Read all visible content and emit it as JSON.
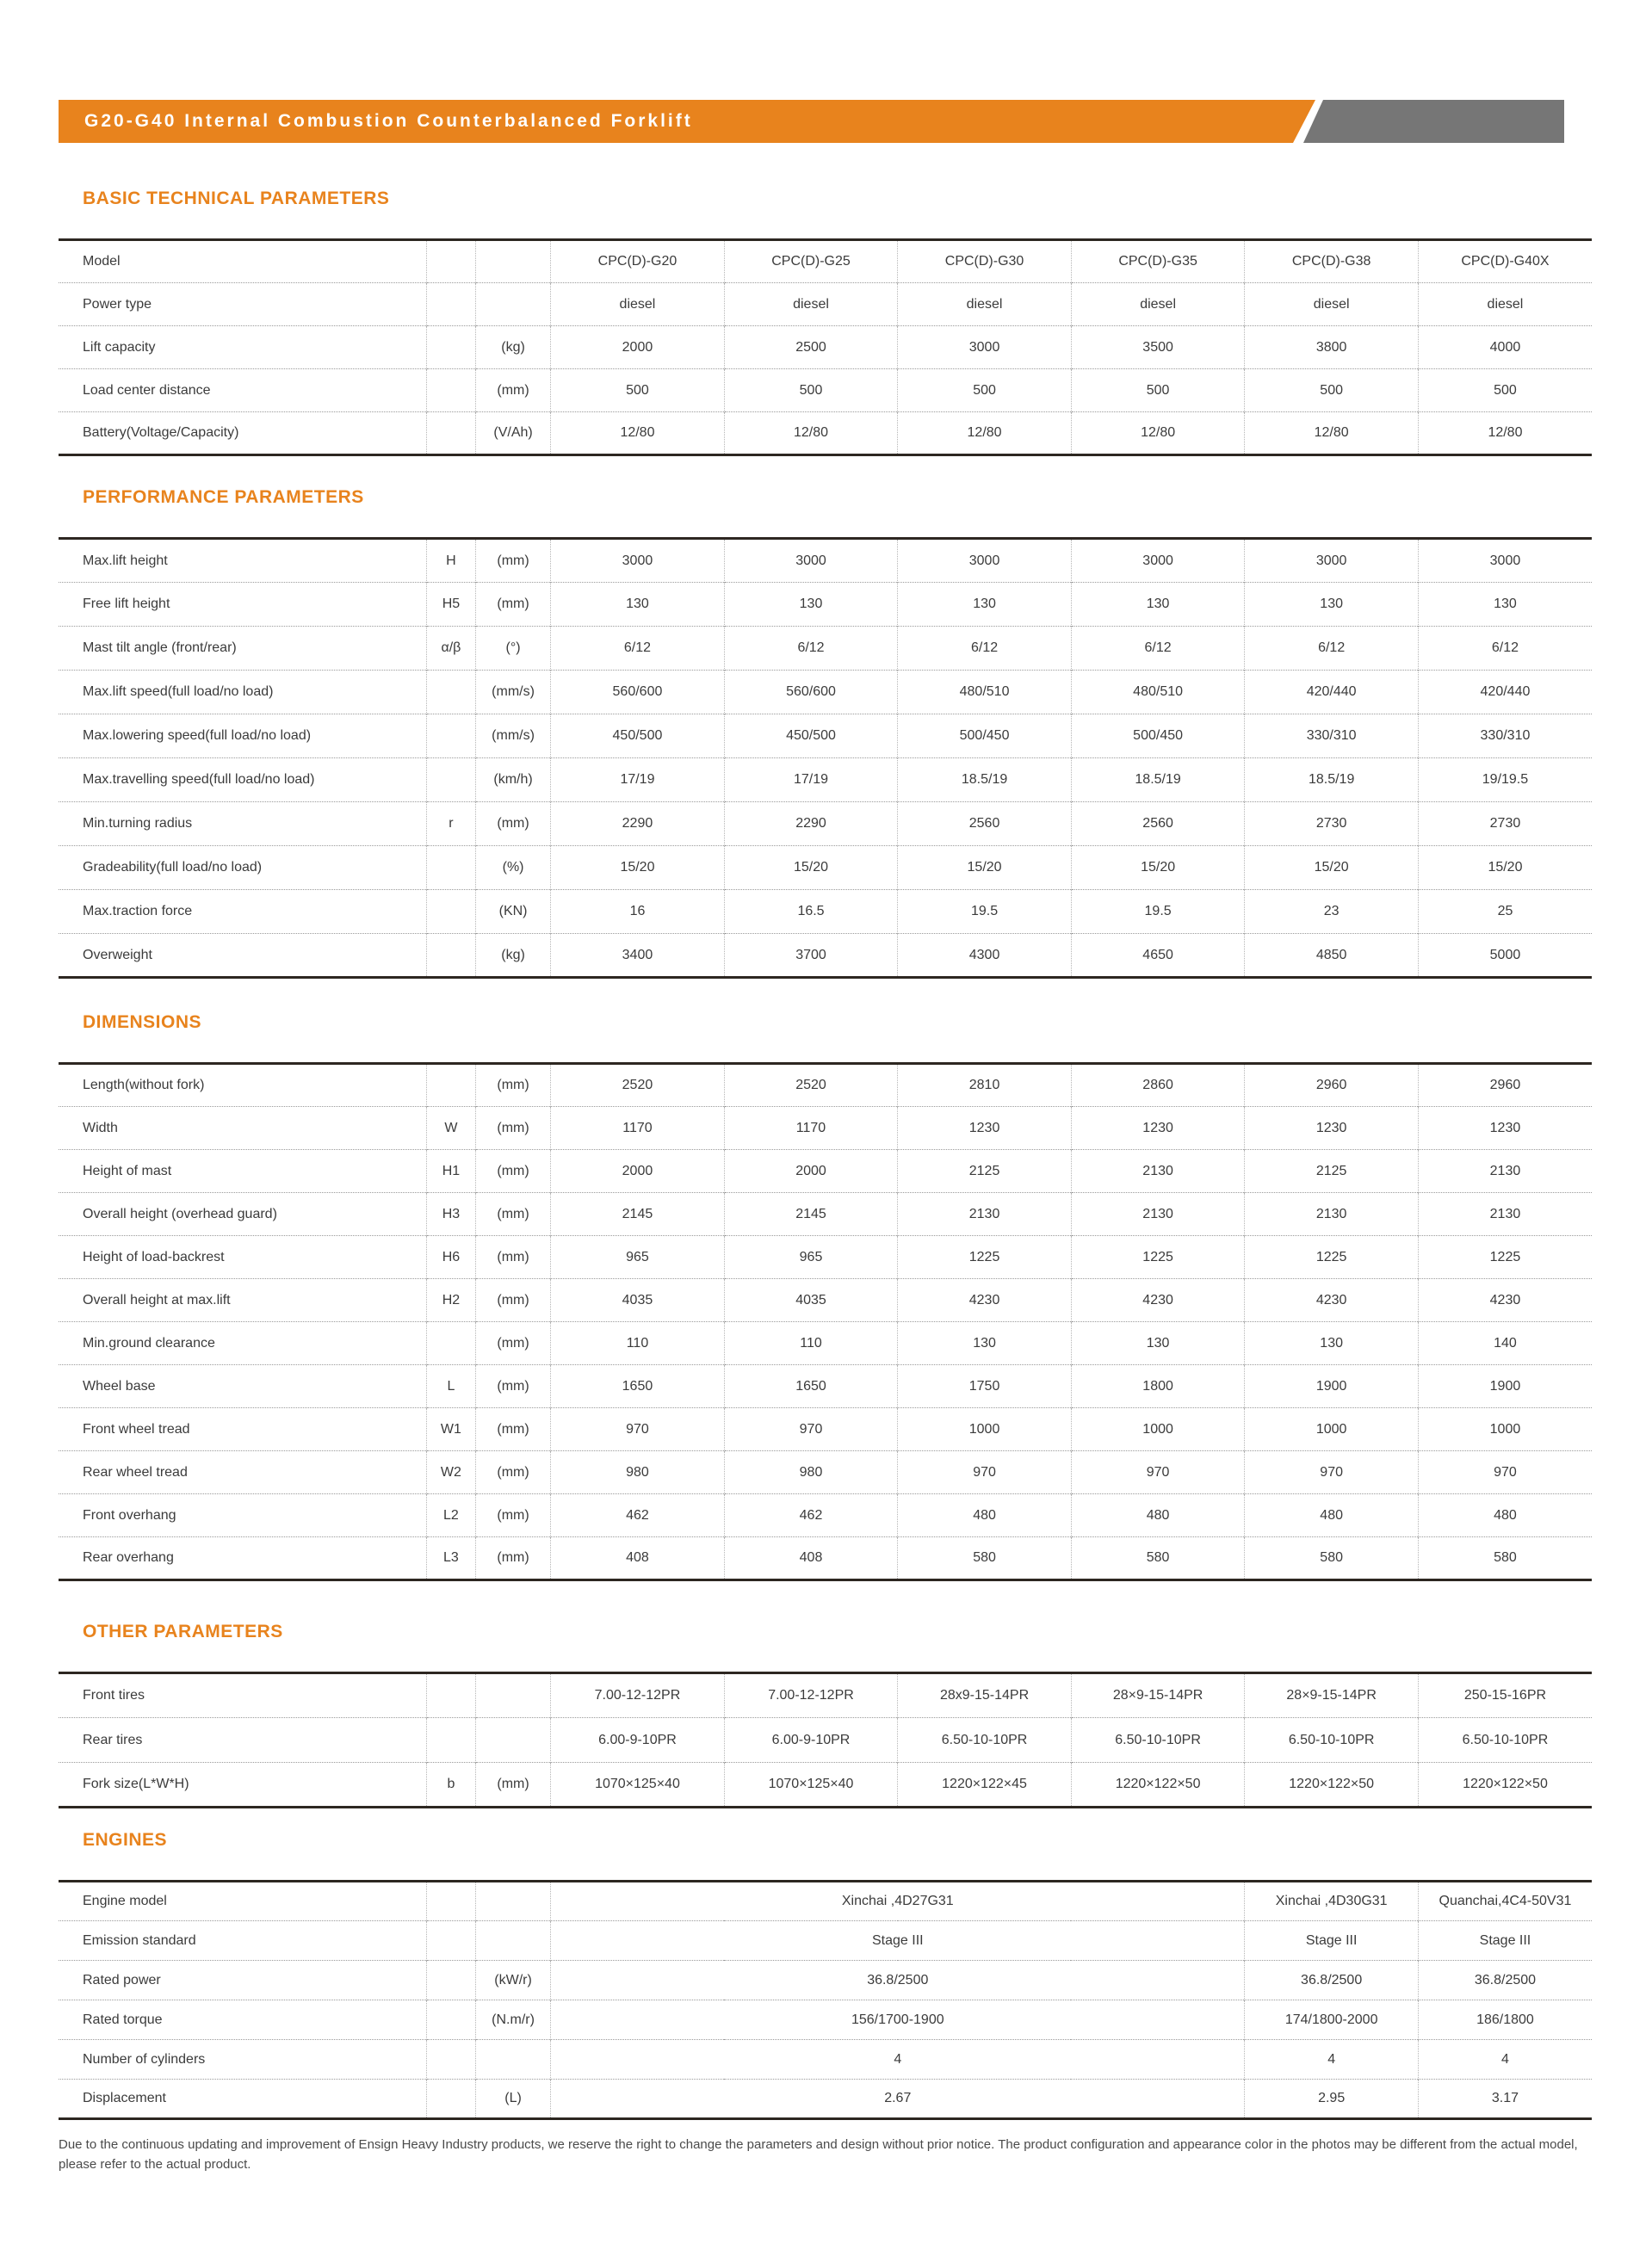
{
  "colors": {
    "accent_orange": "#E8831D",
    "banner_gray": "#767676"
  },
  "header": {
    "title": "G20-G40 Internal Combustion Counterbalanced Forklift"
  },
  "sections": {
    "basic": {
      "title": "BASIC TECHNICAL PARAMETERS",
      "rows": [
        {
          "label": "Model",
          "sym": "",
          "unit": "",
          "values": [
            "CPC(D)-G20",
            "CPC(D)-G25",
            "CPC(D)-G30",
            "CPC(D)-G35",
            "CPC(D)-G38",
            "CPC(D)-G40X"
          ]
        },
        {
          "label": "Power type",
          "sym": "",
          "unit": "",
          "values": [
            "diesel",
            "diesel",
            "diesel",
            "diesel",
            "diesel",
            "diesel"
          ]
        },
        {
          "label": "Lift capacity",
          "sym": "",
          "unit": "(kg)",
          "values": [
            "2000",
            "2500",
            "3000",
            "3500",
            "3800",
            "4000"
          ]
        },
        {
          "label": "Load center distance",
          "sym": "",
          "unit": "(mm)",
          "values": [
            "500",
            "500",
            "500",
            "500",
            "500",
            "500"
          ]
        },
        {
          "label": "Battery(Voltage/Capacity)",
          "sym": "",
          "unit": "(V/Ah)",
          "values": [
            "12/80",
            "12/80",
            "12/80",
            "12/80",
            "12/80",
            "12/80"
          ]
        }
      ]
    },
    "performance": {
      "title": "PERFORMANCE PARAMETERS",
      "rows": [
        {
          "label": "Max.lift height",
          "sym": "H",
          "unit": "(mm)",
          "values": [
            "3000",
            "3000",
            "3000",
            "3000",
            "3000",
            "3000"
          ]
        },
        {
          "label": "Free lift height",
          "sym": "H5",
          "unit": "(mm)",
          "values": [
            "130",
            "130",
            "130",
            "130",
            "130",
            "130"
          ]
        },
        {
          "label": "Mast tilt angle (front/rear)",
          "sym": "α/β",
          "unit": "(°)",
          "values": [
            "6/12",
            "6/12",
            "6/12",
            "6/12",
            "6/12",
            "6/12"
          ]
        },
        {
          "label": "Max.lift speed(full load/no load)",
          "sym": "",
          "unit": "(mm/s)",
          "values": [
            "560/600",
            "560/600",
            "480/510",
            "480/510",
            "420/440",
            "420/440"
          ]
        },
        {
          "label": "Max.lowering speed(full load/no load)",
          "sym": "",
          "unit": "(mm/s)",
          "values": [
            "450/500",
            "450/500",
            "500/450",
            "500/450",
            "330/310",
            "330/310"
          ]
        },
        {
          "label": "Max.travelling speed(full load/no load)",
          "sym": "",
          "unit": "(km/h)",
          "values": [
            "17/19",
            "17/19",
            "18.5/19",
            "18.5/19",
            "18.5/19",
            "19/19.5"
          ]
        },
        {
          "label": "Min.turning radius",
          "sym": "r",
          "unit": "(mm)",
          "values": [
            "2290",
            "2290",
            "2560",
            "2560",
            "2730",
            "2730"
          ]
        },
        {
          "label": "Gradeability(full load/no load)",
          "sym": "",
          "unit": "(%)",
          "values": [
            "15/20",
            "15/20",
            "15/20",
            "15/20",
            "15/20",
            "15/20"
          ]
        },
        {
          "label": "Max.traction force",
          "sym": "",
          "unit": "(KN)",
          "values": [
            "16",
            "16.5",
            "19.5",
            "19.5",
            "23",
            "25"
          ]
        },
        {
          "label": "Overweight",
          "sym": "",
          "unit": "(kg)",
          "values": [
            "3400",
            "3700",
            "4300",
            "4650",
            "4850",
            "5000"
          ]
        }
      ]
    },
    "dimensions": {
      "title": "DIMENSIONS",
      "rows": [
        {
          "label": "Length(without fork)",
          "sym": "",
          "unit": "(mm)",
          "values": [
            "2520",
            "2520",
            "2810",
            "2860",
            "2960",
            "2960"
          ]
        },
        {
          "label": "Width",
          "sym": "W",
          "unit": "(mm)",
          "values": [
            "1170",
            "1170",
            "1230",
            "1230",
            "1230",
            "1230"
          ]
        },
        {
          "label": "Height of mast",
          "sym": "H1",
          "unit": "(mm)",
          "values": [
            "2000",
            "2000",
            "2125",
            "2130",
            "2125",
            "2130"
          ]
        },
        {
          "label": "Overall height (overhead guard)",
          "sym": "H3",
          "unit": "(mm)",
          "values": [
            "2145",
            "2145",
            "2130",
            "2130",
            "2130",
            "2130"
          ]
        },
        {
          "label": "Height of load-backrest",
          "sym": "H6",
          "unit": "(mm)",
          "values": [
            "965",
            "965",
            "1225",
            "1225",
            "1225",
            "1225"
          ]
        },
        {
          "label": "Overall height at max.lift",
          "sym": "H2",
          "unit": "(mm)",
          "values": [
            "4035",
            "4035",
            "4230",
            "4230",
            "4230",
            "4230"
          ]
        },
        {
          "label": "Min.ground clearance",
          "sym": "",
          "unit": "(mm)",
          "values": [
            "110",
            "110",
            "130",
            "130",
            "130",
            "140"
          ]
        },
        {
          "label": "Wheel base",
          "sym": "L",
          "unit": "(mm)",
          "values": [
            "1650",
            "1650",
            "1750",
            "1800",
            "1900",
            "1900"
          ]
        },
        {
          "label": "Front wheel tread",
          "sym": "W1",
          "unit": "(mm)",
          "values": [
            "970",
            "970",
            "1000",
            "1000",
            "1000",
            "1000"
          ]
        },
        {
          "label": "Rear wheel tread",
          "sym": "W2",
          "unit": "(mm)",
          "values": [
            "980",
            "980",
            "970",
            "970",
            "970",
            "970"
          ]
        },
        {
          "label": "Front overhang",
          "sym": "L2",
          "unit": "(mm)",
          "values": [
            "462",
            "462",
            "480",
            "480",
            "480",
            "480"
          ]
        },
        {
          "label": "Rear overhang",
          "sym": "L3",
          "unit": "(mm)",
          "values": [
            "408",
            "408",
            "580",
            "580",
            "580",
            "580"
          ]
        }
      ]
    },
    "other": {
      "title": "OTHER PARAMETERS",
      "rows": [
        {
          "label": "Front tires",
          "sym": "",
          "unit": "",
          "values": [
            "7.00-12-12PR",
            "7.00-12-12PR",
            "28x9-15-14PR",
            "28×9-15-14PR",
            "28×9-15-14PR",
            "250-15-16PR"
          ]
        },
        {
          "label": "Rear tires",
          "sym": "",
          "unit": "",
          "values": [
            "6.00-9-10PR",
            "6.00-9-10PR",
            "6.50-10-10PR",
            "6.50-10-10PR",
            "6.50-10-10PR",
            "6.50-10-10PR"
          ]
        },
        {
          "label": "Fork size(L*W*H)",
          "sym": "b",
          "unit": "(mm)",
          "values": [
            "1070×125×40",
            "1070×125×40",
            "1220×122×45",
            "1220×122×50",
            "1220×122×50",
            "1220×122×50"
          ]
        }
      ]
    },
    "engines": {
      "title": "ENGINES",
      "rows": [
        {
          "label": "Engine model",
          "sym": "",
          "unit": "",
          "values": [
            "Xinchai ,4D27G31",
            "Xinchai ,4D30G31",
            "Quanchai,4C4-50V31"
          ],
          "spans": [
            4,
            1,
            1
          ]
        },
        {
          "label": "Emission standard",
          "sym": "",
          "unit": "",
          "values": [
            "Stage III",
            "Stage III",
            "Stage III"
          ],
          "spans": [
            4,
            1,
            1
          ]
        },
        {
          "label": "Rated power",
          "sym": "",
          "unit": "(kW/r)",
          "values": [
            "36.8/2500",
            "36.8/2500",
            "36.8/2500"
          ],
          "spans": [
            4,
            1,
            1
          ]
        },
        {
          "label": "Rated torque",
          "sym": "",
          "unit": "(N.m/r)",
          "values": [
            "156/1700-1900",
            "174/1800-2000",
            "186/1800"
          ],
          "spans": [
            4,
            1,
            1
          ]
        },
        {
          "label": "Number of cylinders",
          "sym": "",
          "unit": "",
          "values": [
            "4",
            "4",
            "4"
          ],
          "spans": [
            4,
            1,
            1
          ]
        },
        {
          "label": "Displacement",
          "sym": "",
          "unit": "(L)",
          "values": [
            "2.67",
            "2.95",
            "3.17"
          ],
          "spans": [
            4,
            1,
            1
          ]
        }
      ]
    }
  },
  "footer": {
    "note": "Due to the continuous updating and improvement of Ensign Heavy Industry products, we reserve the right to change the parameters and design without prior notice. The product configuration and appearance color in the photos may be different from the actual model, please refer to the actual product."
  }
}
